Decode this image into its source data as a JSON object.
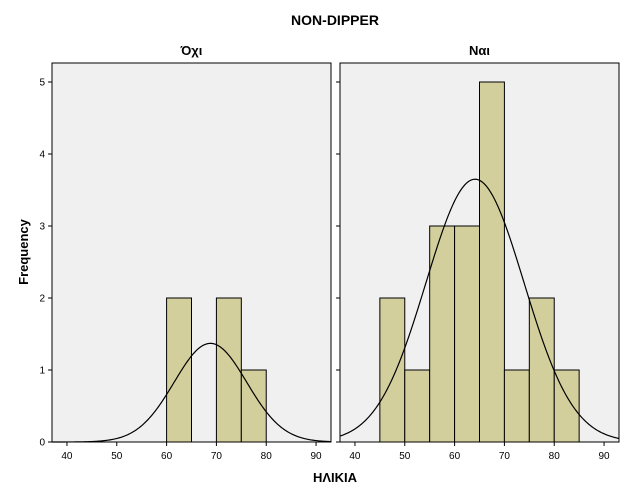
{
  "chart_data": {
    "type": "bar",
    "title": "NON-DIPPER",
    "xlabel": "ΗΛΙΚΙΑ",
    "ylabel": "Frequency",
    "xlim": [
      37,
      93
    ],
    "ylim": [
      0,
      5.5
    ],
    "x_ticks": [
      40,
      50,
      60,
      70,
      80,
      90
    ],
    "y_ticks": [
      0,
      1,
      2,
      3,
      4,
      5
    ],
    "bin_width": 5,
    "grid": false,
    "panels": [
      {
        "name": "Όχι",
        "bins": [
          {
            "start": 60,
            "end": 65,
            "count": 2
          },
          {
            "start": 70,
            "end": 75,
            "count": 2
          },
          {
            "start": 75,
            "end": 80,
            "count": 1
          }
        ],
        "normal_curve": {
          "mean": 68.8,
          "peak": 1.37
        }
      },
      {
        "name": "Ναι",
        "bins": [
          {
            "start": 45,
            "end": 50,
            "count": 2
          },
          {
            "start": 50,
            "end": 55,
            "count": 1
          },
          {
            "start": 55,
            "end": 60,
            "count": 3
          },
          {
            "start": 60,
            "end": 65,
            "count": 3
          },
          {
            "start": 65,
            "end": 70,
            "count": 5
          },
          {
            "start": 70,
            "end": 75,
            "count": 1
          },
          {
            "start": 75,
            "end": 80,
            "count": 2
          },
          {
            "start": 80,
            "end": 85,
            "count": 1
          }
        ],
        "normal_curve": {
          "mean": 64.1,
          "peak": 3.65
        }
      }
    ]
  }
}
